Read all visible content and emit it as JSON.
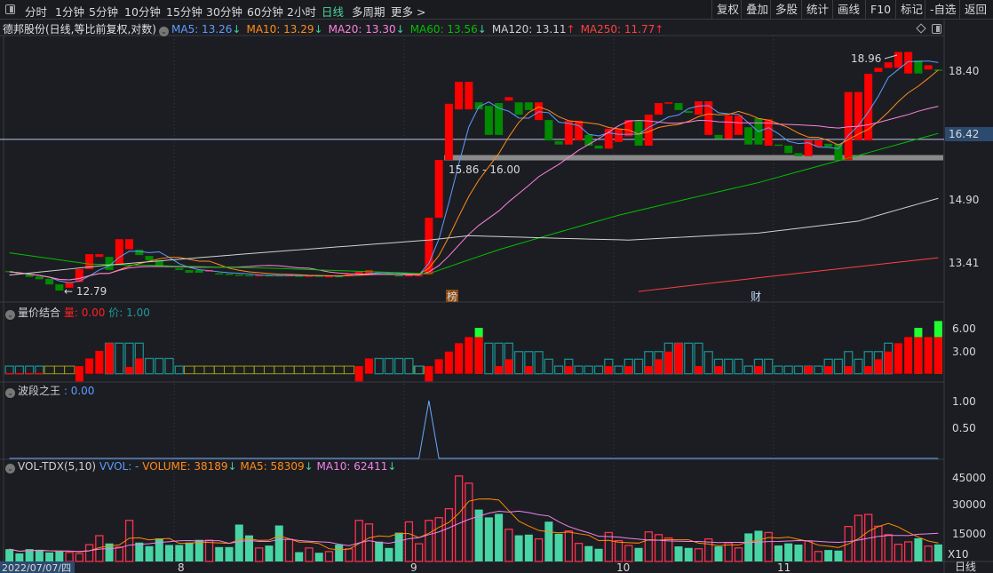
{
  "toolbar": {
    "left": [
      {
        "label": "分时"
      },
      {
        "label": "1分钟"
      },
      {
        "label": "5分钟"
      },
      {
        "label": "10分钟"
      },
      {
        "label": "15分钟"
      },
      {
        "label": "30分钟"
      },
      {
        "label": "60分钟"
      },
      {
        "label": "2小时"
      },
      {
        "label": "日线"
      },
      {
        "label": "多周期"
      },
      {
        "label": "更多 >"
      }
    ],
    "right": [
      {
        "label": "复权"
      },
      {
        "label": "叠加"
      },
      {
        "label": "多股"
      },
      {
        "label": "统计"
      },
      {
        "label": "画线"
      },
      {
        "label": "F10"
      },
      {
        "label": "标记"
      },
      {
        "label": "-自选"
      },
      {
        "label": "返回"
      }
    ],
    "active": "日线"
  },
  "main": {
    "title": "德邦股份(日线,等比前复权,对数)",
    "ma": [
      {
        "label": "MA5: 13.26",
        "arrow": "↓",
        "color": "#5b9cff",
        "arrow_color": "#40d0a0"
      },
      {
        "label": "MA10: 13.29",
        "arrow": "↓",
        "color": "#ff8c1a",
        "arrow_color": "#40d0a0"
      },
      {
        "label": "MA20: 13.30",
        "arrow": "↓",
        "color": "#ff80e0",
        "arrow_color": "#40d0a0"
      },
      {
        "label": "MA60: 13.56",
        "arrow": "↓",
        "color": "#00c000",
        "arrow_color": "#40d0a0"
      },
      {
        "label": "MA120: 13.11",
        "arrow": "↑",
        "color": "#d0d0d0",
        "arrow_color": "#ff3030"
      },
      {
        "label": "MA250: 11.77",
        "arrow": "↑",
        "color": "#ff4040",
        "arrow_color": "#ff3030"
      }
    ],
    "axis": [
      "18.40",
      "16.42",
      "14.90",
      "13.41"
    ],
    "current_price": "16.42",
    "band_label": "15.86 - 16.00",
    "high_label": "18.96",
    "low_label": "← 12.79",
    "marker1": "榜",
    "marker2": "财"
  },
  "panel_vp": {
    "title": "量价结合",
    "v1_label": "量",
    "v1": ": 0.00",
    "v2_label": "价",
    "v2": ": 1.00",
    "axis": [
      "6.00",
      "3.00"
    ]
  },
  "panel_wave": {
    "title": "波段之王",
    "value": ": 0.00",
    "axis": [
      "1.00",
      "0.50"
    ]
  },
  "panel_vol": {
    "title": "VOL-TDX(5,10)",
    "vvol": "VVOL: -",
    "volume": "VOLUME: 38189",
    "ma5": "MA5: 58309",
    "ma10": "MA10: 62411",
    "arrow": "↓",
    "axis": [
      "45000",
      "30000",
      "15000"
    ],
    "unit": "X10"
  },
  "date_axis": {
    "current": "2022/07/07/四",
    "months": [
      "8",
      "9",
      "10",
      "11"
    ],
    "period": "日线"
  },
  "colors": {
    "up": "#ff0000",
    "down": "#008a00",
    "vol_down": "#48d4a4",
    "vol_up": "#ff3050",
    "teal": "#1a8c8c",
    "olive": "#9a9a10",
    "bg": "#1c1d22"
  },
  "chart_data": {
    "type": "candlestick",
    "month_start_index": [
      17,
      40,
      61,
      77
    ],
    "candles": [
      [
        13.22,
        13.2
      ],
      [
        13.18,
        13.16
      ],
      [
        13.16,
        13.09
      ],
      [
        13.1,
        13.04
      ],
      [
        13.05,
        12.93
      ],
      [
        12.93,
        12.8
      ],
      [
        12.86,
        12.97
      ],
      [
        12.98,
        13.26
      ],
      [
        13.26,
        13.59
      ],
      [
        13.53,
        13.59
      ],
      [
        13.53,
        13.24
      ],
      [
        13.35,
        13.93
      ],
      [
        13.7,
        13.93
      ],
      [
        13.69,
        13.57
      ],
      [
        13.55,
        13.45
      ],
      [
        13.45,
        13.33
      ],
      [
        13.33,
        13.3
      ],
      [
        13.28,
        13.24
      ],
      [
        13.24,
        13.18
      ],
      [
        13.24,
        13.18
      ],
      [
        13.2,
        13.24
      ],
      [
        13.17,
        13.16
      ],
      [
        13.16,
        13.14
      ],
      [
        13.14,
        13.12
      ],
      [
        13.13,
        13.12
      ],
      [
        13.12,
        13.13
      ],
      [
        13.13,
        13.12
      ],
      [
        13.13,
        13.11
      ],
      [
        13.12,
        13.13
      ],
      [
        13.12,
        13.11
      ],
      [
        13.11,
        13.12
      ],
      [
        13.12,
        13.1
      ],
      [
        13.1,
        13.11
      ],
      [
        13.11,
        13.1
      ],
      [
        13.11,
        13.16
      ],
      [
        13.16,
        13.2
      ],
      [
        13.14,
        13.24
      ],
      [
        13.2,
        13.18
      ],
      [
        13.18,
        13.14
      ],
      [
        13.14,
        13.1
      ],
      [
        13.1,
        13.13
      ],
      [
        13.12,
        13.13
      ],
      [
        13.14,
        14.43
      ],
      [
        14.43,
        15.87
      ],
      [
        15.87,
        17.41
      ],
      [
        17.25,
        18.05
      ],
      [
        17.25,
        18.05
      ],
      [
        17.45,
        17.25
      ],
      [
        17.35,
        16.54
      ],
      [
        17.43,
        16.54
      ],
      [
        17.5,
        17.6
      ],
      [
        17.45,
        17.1
      ],
      [
        17.45,
        17.23
      ],
      [
        16.95,
        17.45
      ],
      [
        16.95,
        16.39
      ],
      [
        16.37,
        16.28
      ],
      [
        16.28,
        16.93
      ],
      [
        16.39,
        16.93
      ],
      [
        16.54,
        16.25
      ],
      [
        16.25,
        16.17
      ],
      [
        16.17,
        16.71
      ],
      [
        16.35,
        16.71
      ],
      [
        16.5,
        16.95
      ],
      [
        16.93,
        16.25
      ],
      [
        16.25,
        17.1
      ],
      [
        17.1,
        17.43
      ],
      [
        17.43,
        17.45
      ],
      [
        17.43,
        17.23
      ],
      [
        17.2,
        17.15
      ],
      [
        17.1,
        17.48
      ],
      [
        16.54,
        17.48
      ],
      [
        16.54,
        16.43
      ],
      [
        16.43,
        17.08
      ],
      [
        16.54,
        17.08
      ],
      [
        16.75,
        16.28
      ],
      [
        17.0,
        16.28
      ],
      [
        16.25,
        16.97
      ],
      [
        16.28,
        16.25
      ],
      [
        16.25,
        16.05
      ],
      [
        16.05,
        15.97
      ],
      [
        15.97,
        16.39
      ],
      [
        16.22,
        16.39
      ],
      [
        16.3,
        16.22
      ],
      [
        16.3,
        15.87
      ],
      [
        15.87,
        17.75
      ],
      [
        16.39,
        17.75
      ],
      [
        16.39,
        18.29
      ],
      [
        18.35,
        18.47
      ],
      [
        18.47,
        18.64
      ],
      [
        18.47,
        18.96
      ],
      [
        18.3,
        18.96
      ],
      [
        18.7,
        18.3
      ],
      [
        18.42,
        18.55
      ],
      [
        18.42,
        18.4
      ]
    ],
    "ma60": [
      [
        0,
        13.62
      ],
      [
        8,
        13.37
      ],
      [
        26,
        13.28
      ],
      [
        42,
        13.16
      ],
      [
        49,
        13.69
      ],
      [
        61,
        14.49
      ],
      [
        75,
        15.29
      ],
      [
        85,
        15.99
      ],
      [
        93,
        16.58
      ]
    ],
    "ma120": [
      [
        0,
        13.13
      ],
      [
        10,
        13.35
      ],
      [
        25,
        13.62
      ],
      [
        42,
        13.91
      ],
      [
        46,
        14.01
      ],
      [
        55,
        13.95
      ],
      [
        62,
        13.91
      ],
      [
        75,
        14.07
      ],
      [
        85,
        14.35
      ],
      [
        93,
        14.9
      ]
    ],
    "ma250": [
      [
        63,
        12.78
      ],
      [
        93,
        13.51
      ]
    ],
    "volume": [
      6490,
      4270,
      6490,
      6170,
      4750,
      5380,
      4750,
      4110,
      8860,
      13600,
      9490,
      7590,
      21670,
      9970,
      8070,
      12180,
      8700,
      8700,
      9970,
      11390,
      11230,
      7590,
      7590,
      19460,
      13760,
      7120,
      8380,
      18980,
      11700,
      4900,
      7120,
      4590,
      5220,
      8860,
      6640,
      21670,
      19780,
      10440,
      7120,
      15190,
      20880,
      9330,
      21670,
      23100,
      27840,
      45090,
      41290,
      27370,
      23250,
      25100,
      17000,
      13800,
      14150,
      11900,
      21000,
      14600,
      16060,
      9540,
      8110,
      6680,
      15260,
      10970,
      8430,
      7150,
      15580,
      14150,
      12400,
      7950,
      7150,
      6680,
      11900,
      7950,
      9860,
      7150,
      14800,
      16200,
      15260,
      8430,
      9540,
      8900,
      10800,
      5250,
      6040,
      5720,
      18440,
      24300,
      24800,
      18600,
      14150,
      9060,
      10330,
      12240,
      8110,
      9000
    ],
    "vp_teal": [
      1,
      1,
      1,
      1,
      0,
      0,
      0,
      0,
      0,
      0,
      4,
      4,
      4,
      4,
      2,
      2,
      2,
      1,
      0,
      0,
      0,
      0,
      0,
      0,
      0,
      0,
      0,
      0,
      0,
      0,
      0,
      0,
      0,
      0,
      0,
      0,
      0,
      2,
      2,
      2,
      2,
      1,
      0,
      0,
      0,
      0,
      0,
      0,
      4,
      4,
      4,
      2.9,
      2.9,
      2.9,
      1.9,
      1,
      1.9,
      1,
      1,
      1,
      1.9,
      1,
      1.9,
      1.9,
      2.9,
      2.9,
      4,
      4,
      4,
      4,
      2.9,
      1.9,
      1.9,
      1.9,
      1,
      1.9,
      1.9,
      1,
      1,
      1,
      1,
      1,
      1.9,
      1.9,
      2.9,
      1.9,
      2.9,
      2.9,
      4,
      0,
      0,
      0,
      0,
      0
    ],
    "vp_red": [
      0.1,
      0.1,
      0.1,
      0.1,
      0,
      0,
      0,
      1,
      2,
      3,
      4,
      0,
      0.9,
      2,
      0,
      0,
      0,
      0,
      0,
      0,
      0,
      0,
      0,
      0,
      0,
      0,
      0,
      0,
      0,
      0,
      0,
      0,
      0,
      0,
      0,
      1,
      2,
      0,
      0,
      0,
      0,
      0,
      1,
      1.9,
      2.9,
      4,
      4.8,
      4.8,
      0,
      1,
      1.9,
      0,
      1,
      0,
      0,
      0,
      1,
      0,
      0,
      0,
      1,
      0,
      1,
      0,
      1,
      1.9,
      2.9,
      4,
      0,
      1,
      0,
      1,
      0,
      0,
      0,
      1,
      0,
      0,
      0,
      0,
      1,
      0,
      1,
      0,
      1,
      0,
      1,
      1.9,
      2.9,
      4,
      4.8,
      4.8,
      4.8,
      4.8
    ],
    "vp_green": [
      0,
      0,
      0,
      0,
      0,
      0,
      0,
      0,
      0,
      0,
      0,
      0,
      0,
      0,
      0,
      0,
      0,
      0,
      0,
      0,
      0,
      0,
      0,
      0,
      0,
      0,
      0,
      0,
      0,
      0,
      0,
      0,
      0,
      0,
      0,
      0,
      0,
      0,
      0,
      0,
      0,
      0,
      0,
      0,
      0,
      0,
      0,
      6,
      0,
      0,
      0,
      0,
      0,
      0,
      0,
      0,
      0,
      0,
      0,
      0,
      0,
      0,
      0,
      0,
      0,
      0,
      0,
      0,
      0,
      0,
      0,
      0,
      0,
      0,
      0,
      0,
      0,
      0,
      0,
      0,
      0,
      0,
      0,
      0,
      0,
      0,
      0,
      0,
      0,
      0,
      0,
      6,
      0,
      6.9
    ],
    "vp_neg": [
      7,
      35,
      42
    ],
    "vp_olive": [
      4,
      5,
      6,
      18,
      19,
      20,
      21,
      22,
      23,
      24,
      25,
      26,
      27,
      28,
      29,
      30,
      31,
      32,
      33,
      34,
      41
    ],
    "wave": {
      "spike_index": 42,
      "value": 1
    }
  }
}
